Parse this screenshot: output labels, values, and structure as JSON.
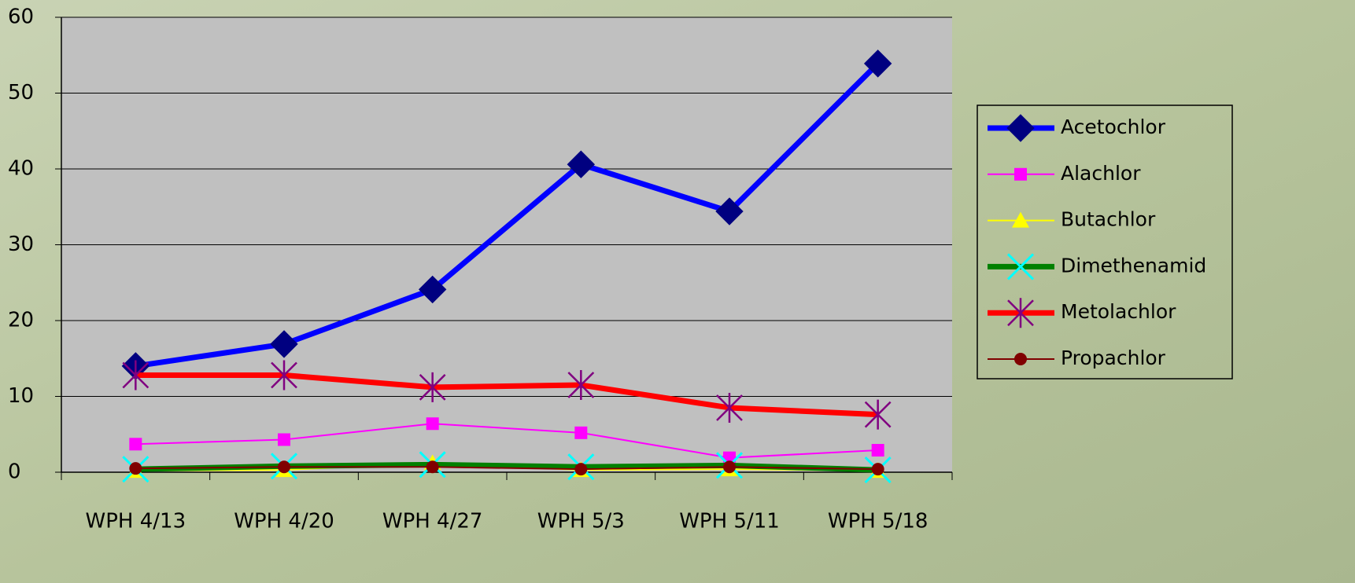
{
  "chart_data": {
    "type": "line",
    "categories": [
      "WPH 4/13",
      "WPH 4/20",
      "WPH 4/27",
      "WPH 5/3",
      "WPH 5/11",
      "WPH 5/18"
    ],
    "ylim": [
      0,
      60
    ],
    "yticks": [
      0,
      10,
      20,
      30,
      40,
      50,
      60
    ],
    "grid": true,
    "legend": "right",
    "series": [
      {
        "name": "Acetochlor",
        "color": "#0000ff",
        "marker_color": "#000080",
        "marker": "diamond",
        "line_width": 7,
        "values": [
          14.0,
          16.9,
          24.1,
          40.6,
          34.4,
          53.9
        ]
      },
      {
        "name": "Alachlor",
        "color": "#ff00ff",
        "marker_color": "#ff00ff",
        "marker": "square",
        "line_width": 2,
        "values": [
          3.7,
          4.3,
          6.4,
          5.2,
          1.9,
          2.9
        ]
      },
      {
        "name": "Butachlor",
        "color": "#ffff00",
        "marker_color": "#ffff00",
        "marker": "triangle",
        "line_width": 2,
        "values": [
          0.2,
          0.3,
          1.2,
          0.3,
          0.4,
          0.2
        ]
      },
      {
        "name": "Dimethenamid",
        "color": "#008000",
        "marker_color": "#00ffff",
        "marker": "x",
        "line_width": 7,
        "values": [
          0.4,
          0.8,
          1.0,
          0.7,
          0.9,
          0.3
        ]
      },
      {
        "name": "Metolachlor",
        "color": "#ff0000",
        "marker_color": "#800080",
        "marker": "asterisk",
        "line_width": 7,
        "values": [
          12.8,
          12.8,
          11.2,
          11.5,
          8.5,
          7.6
        ]
      },
      {
        "name": "Propachlor",
        "color": "#800000",
        "marker_color": "#800000",
        "marker": "circle",
        "line_width": 2,
        "values": [
          0.5,
          0.7,
          0.7,
          0.4,
          0.7,
          0.4
        ]
      }
    ]
  }
}
